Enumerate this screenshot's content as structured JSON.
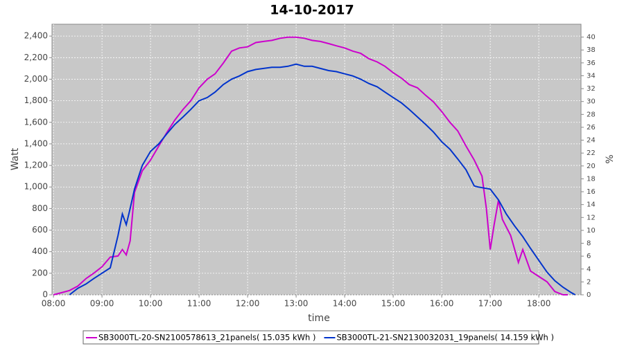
{
  "chart_data": {
    "type": "line",
    "title": "14-10-2017",
    "x_label": "time",
    "y_label": "Watt",
    "y2_label": "%",
    "xlim": [
      7.97,
      18.87
    ],
    "xticks": [
      {
        "value": 8,
        "label": "08:00"
      },
      {
        "value": 9,
        "label": "09:00"
      },
      {
        "value": 10,
        "label": "10:00"
      },
      {
        "value": 11,
        "label": "11:00"
      },
      {
        "value": 12,
        "label": "12:00"
      },
      {
        "value": 13,
        "label": "13:00"
      },
      {
        "value": 14,
        "label": "14:00"
      },
      {
        "value": 15,
        "label": "15:00"
      },
      {
        "value": 16,
        "label": "16:00"
      },
      {
        "value": 17,
        "label": "17:00"
      },
      {
        "value": 18,
        "label": "18:00"
      }
    ],
    "ylim": [
      0,
      2510
    ],
    "yticks": [
      0,
      200,
      400,
      600,
      800,
      {
        "value": 1000,
        "label": "1,000"
      },
      {
        "value": 1200,
        "label": "1,200"
      },
      {
        "value": 1400,
        "label": "1,400"
      },
      {
        "value": 1600,
        "label": "1,600"
      },
      {
        "value": 1800,
        "label": "1,800"
      },
      {
        "value": 2000,
        "label": "2,000"
      },
      {
        "value": 2200,
        "label": "2,200"
      },
      {
        "value": 2400,
        "label": "2,400"
      }
    ],
    "y2lim": [
      0,
      42
    ],
    "y2ticks": [
      0,
      2,
      4,
      6,
      8,
      10,
      12,
      14,
      16,
      18,
      20,
      22,
      24,
      26,
      28,
      30,
      32,
      34,
      36,
      38,
      40
    ],
    "grid": true,
    "legend": "bottom",
    "series": [
      {
        "name": "SB3000TL-20-SN2100578613_21panels( 15.035 kWh )",
        "color": "#cc00cc",
        "x": [
          8.0,
          8.17,
          8.33,
          8.5,
          8.67,
          8.83,
          9.0,
          9.17,
          9.33,
          9.42,
          9.5,
          9.58,
          9.67,
          9.83,
          10.0,
          10.17,
          10.33,
          10.5,
          10.67,
          10.83,
          11.0,
          11.17,
          11.33,
          11.5,
          11.67,
          11.83,
          12.0,
          12.17,
          12.33,
          12.5,
          12.67,
          12.83,
          13.0,
          13.17,
          13.33,
          13.5,
          13.67,
          13.83,
          14.0,
          14.17,
          14.33,
          14.5,
          14.67,
          14.83,
          15.0,
          15.17,
          15.33,
          15.5,
          15.67,
          15.83,
          16.0,
          16.17,
          16.33,
          16.5,
          16.67,
          16.83,
          16.92,
          17.0,
          17.08,
          17.17,
          17.25,
          17.42,
          17.58,
          17.67,
          17.83,
          18.0,
          18.17,
          18.33,
          18.5,
          18.6
        ],
        "values": [
          0,
          20,
          40,
          80,
          150,
          200,
          260,
          350,
          360,
          420,
          370,
          500,
          950,
          1150,
          1250,
          1380,
          1500,
          1620,
          1720,
          1800,
          1920,
          2000,
          2050,
          2150,
          2260,
          2290,
          2300,
          2340,
          2350,
          2360,
          2380,
          2390,
          2390,
          2380,
          2360,
          2350,
          2330,
          2310,
          2290,
          2260,
          2240,
          2190,
          2160,
          2120,
          2060,
          2010,
          1950,
          1920,
          1850,
          1790,
          1700,
          1600,
          1520,
          1380,
          1250,
          1100,
          800,
          420,
          650,
          880,
          700,
          550,
          300,
          420,
          220,
          170,
          120,
          30,
          0,
          0
        ]
      },
      {
        "name": "SB3000TL-21-SN2130032031_19panels( 14.159 kWh )",
        "color": "#0033cc",
        "x": [
          8.33,
          8.5,
          8.67,
          8.83,
          9.0,
          9.17,
          9.33,
          9.42,
          9.5,
          9.58,
          9.67,
          9.83,
          10.0,
          10.17,
          10.33,
          10.5,
          10.67,
          10.83,
          11.0,
          11.17,
          11.33,
          11.5,
          11.67,
          11.83,
          12.0,
          12.17,
          12.33,
          12.5,
          12.67,
          12.83,
          13.0,
          13.17,
          13.33,
          13.5,
          13.67,
          13.83,
          14.0,
          14.17,
          14.33,
          14.5,
          14.67,
          14.83,
          15.0,
          15.17,
          15.33,
          15.5,
          15.67,
          15.83,
          16.0,
          16.17,
          16.33,
          16.5,
          16.67,
          16.75,
          17.0,
          17.17,
          17.33,
          17.5,
          17.67,
          17.83,
          18.0,
          18.17,
          18.33,
          18.5,
          18.67,
          18.75
        ],
        "values": [
          0,
          60,
          100,
          150,
          200,
          250,
          550,
          750,
          650,
          800,
          980,
          1200,
          1330,
          1400,
          1490,
          1580,
          1650,
          1720,
          1800,
          1830,
          1880,
          1950,
          2000,
          2030,
          2070,
          2090,
          2100,
          2110,
          2110,
          2120,
          2140,
          2120,
          2120,
          2100,
          2080,
          2070,
          2050,
          2030,
          2000,
          1960,
          1930,
          1880,
          1830,
          1780,
          1720,
          1650,
          1580,
          1510,
          1420,
          1350,
          1260,
          1160,
          1010,
          1000,
          980,
          880,
          750,
          640,
          540,
          430,
          320,
          210,
          130,
          70,
          20,
          0
        ]
      }
    ]
  }
}
